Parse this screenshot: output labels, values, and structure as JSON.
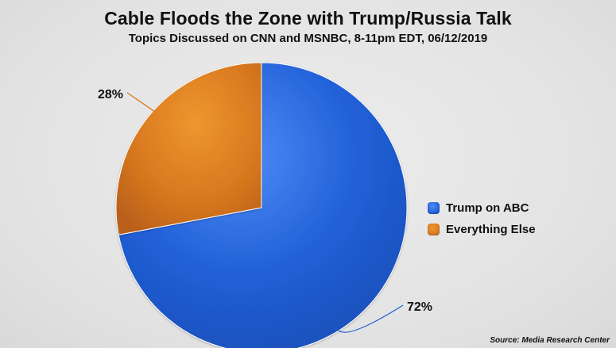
{
  "chart_data": {
    "type": "pie",
    "title": "Cable Floods the Zone with Trump/Russia Talk",
    "subtitle": "Topics Discussed on CNN and MSNBC, 8-11pm EDT, 06/12/2019",
    "categories": [
      "Trump on ABC",
      "Everything Else"
    ],
    "values": [
      72,
      28
    ],
    "value_labels": [
      "72%",
      "28%"
    ],
    "colors": [
      "#1f5fd6",
      "#d8781f"
    ],
    "legend_placement": "right",
    "source": "Source: Media Research Center"
  }
}
